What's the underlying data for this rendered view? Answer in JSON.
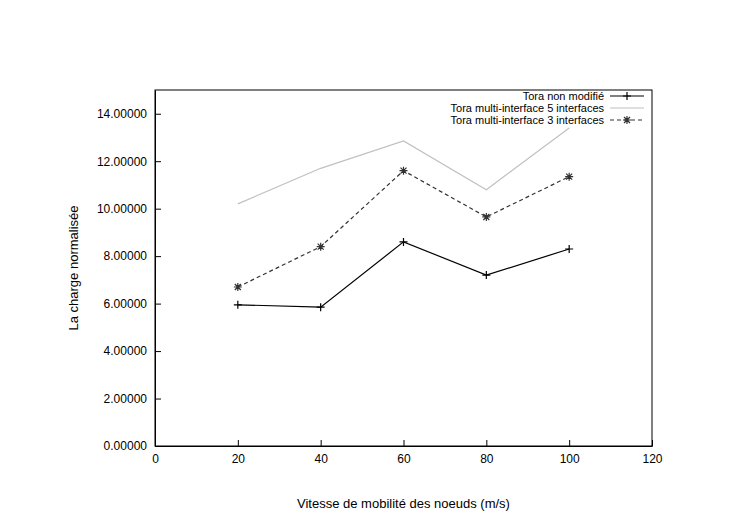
{
  "chart_data": {
    "type": "line",
    "x_label": "Vitesse de mobilité  des noeuds (m/s)",
    "y_label": "La charge normalisée",
    "x": [
      20,
      40,
      60,
      80,
      100
    ],
    "series": [
      {
        "name": "Tora non modifié",
        "color": "#000000",
        "marker": "plus",
        "line_style": "solid",
        "values": [
          5.95,
          5.85,
          8.6,
          7.2,
          8.3
        ]
      },
      {
        "name": "Tora multi-interface 5 interfaces",
        "color": "#c0c0c0",
        "marker": "none",
        "line_style": "solid",
        "values": [
          10.2,
          11.7,
          12.85,
          10.8,
          13.4
        ]
      },
      {
        "name": "Tora multi-interface 3 interfaces",
        "color": "#333333",
        "marker": "star",
        "line_style": "dashed",
        "values": [
          6.7,
          8.4,
          11.6,
          9.65,
          11.35
        ]
      }
    ],
    "xlim": [
      0,
      120
    ],
    "xticks": [
      0,
      20,
      40,
      60,
      80,
      100,
      120
    ],
    "ylim": [
      0,
      15
    ],
    "yticks": [
      {
        "value": 0,
        "label": "0.00000"
      },
      {
        "value": 2,
        "label": "2.00000"
      },
      {
        "value": 4,
        "label": "4.00000"
      },
      {
        "value": 6,
        "label": "6.00000"
      },
      {
        "value": 8,
        "label": "8.00000"
      },
      {
        "value": 10,
        "label": "10.00000"
      },
      {
        "value": 12,
        "label": "12.00000"
      },
      {
        "value": 14,
        "label": "14.00000"
      }
    ],
    "legend": "top-right",
    "grid": false
  }
}
